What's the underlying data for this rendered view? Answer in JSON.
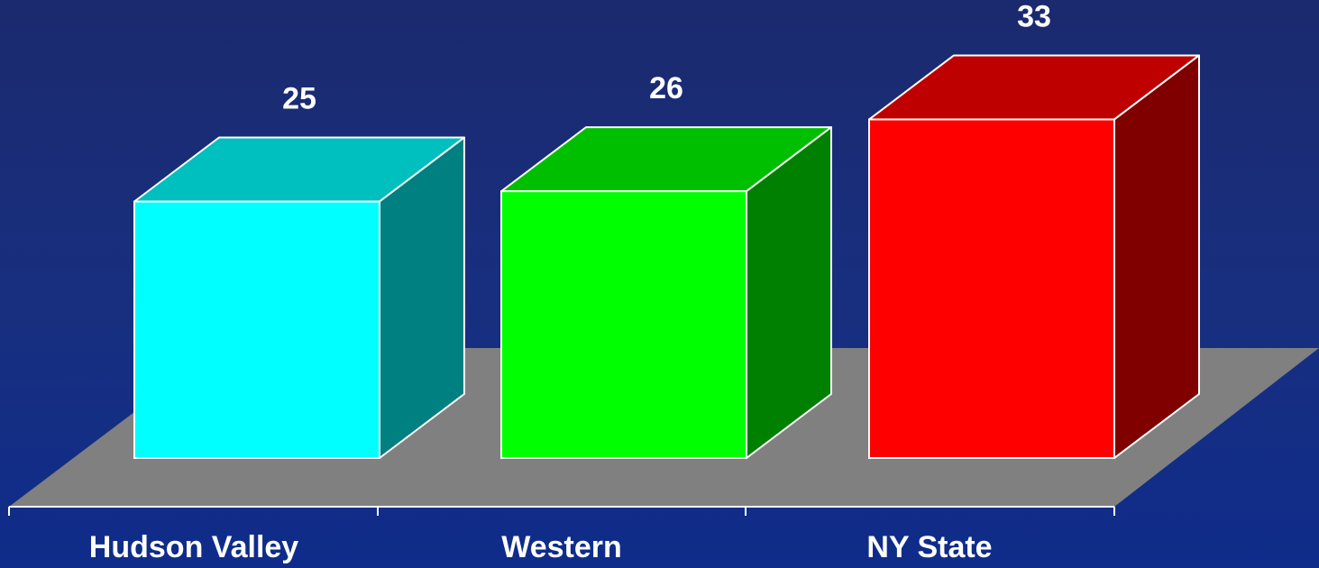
{
  "chart_data": {
    "type": "bar",
    "style": "3d-column",
    "categories": [
      "Hudson Valley",
      "Western",
      "NY State"
    ],
    "values": [
      25,
      26,
      33
    ],
    "data_labels": [
      "25",
      "26",
      "33"
    ],
    "colors": {
      "background": "#142a7a",
      "floor": "#808080",
      "bar_front": [
        "#00ffff",
        "#00ff00",
        "#ff0000"
      ],
      "bar_top": [
        "#00bfbf",
        "#00bf00",
        "#bf0000"
      ],
      "bar_side": [
        "#008080",
        "#008000",
        "#800000"
      ],
      "edge": "#ffffff"
    },
    "title": "",
    "xlabel": "",
    "ylabel": "",
    "grid": false,
    "legend": "none"
  }
}
